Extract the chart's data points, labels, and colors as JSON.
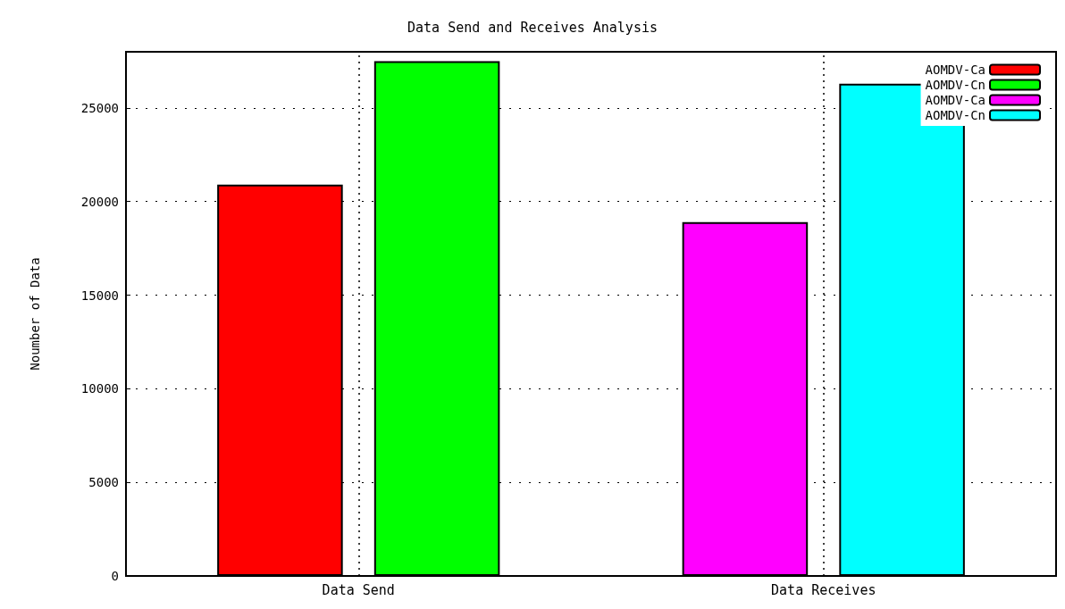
{
  "chart_data": {
    "type": "bar",
    "title": "Data Send and Receives Analysis",
    "ylabel": "Noumber of Data",
    "categories": [
      "Data Send",
      "Data Receives"
    ],
    "series": [
      {
        "name": "AOMDV-Ca",
        "color": "#ff0000",
        "values": [
          20900,
          null
        ]
      },
      {
        "name": "AOMDV-Cn",
        "color": "#00ff00",
        "values": [
          27500,
          null
        ]
      },
      {
        "name": "AOMDV-Ca",
        "color": "#ff00ff",
        "values": [
          null,
          18900
        ]
      },
      {
        "name": "AOMDV-Cn",
        "color": "#00ffff",
        "values": [
          null,
          26300
        ]
      }
    ],
    "ylim": [
      0,
      28000
    ],
    "yticks": [
      0,
      5000,
      10000,
      15000,
      20000,
      25000
    ],
    "grid": true,
    "legend": "top right"
  }
}
